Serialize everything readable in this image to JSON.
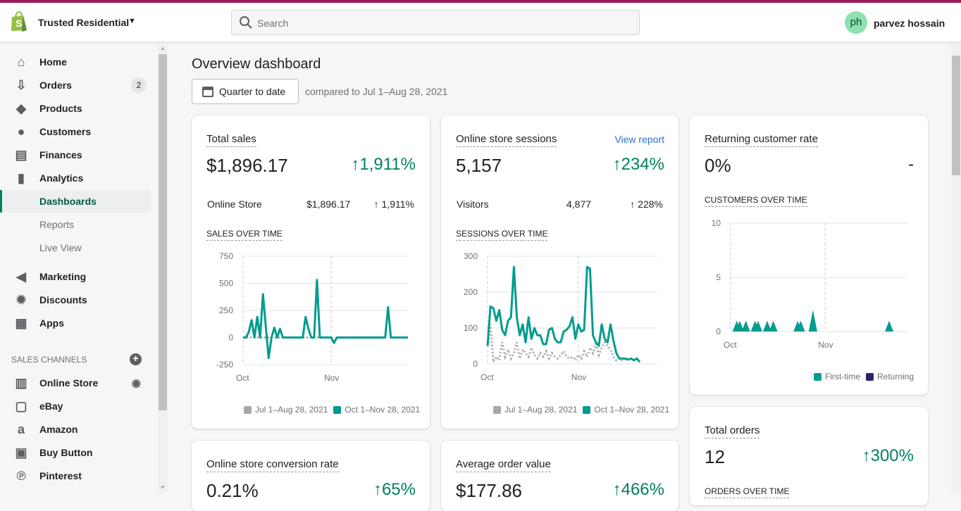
{
  "header": {
    "store_name": "Trusted Residential",
    "search_placeholder": "Search",
    "avatar_initials": "ph",
    "user_name": "parvez hossain"
  },
  "sidebar": {
    "items": [
      {
        "label": "Home",
        "icon": "home-icon"
      },
      {
        "label": "Orders",
        "icon": "orders-icon",
        "badge": "2"
      },
      {
        "label": "Products",
        "icon": "tag-icon"
      },
      {
        "label": "Customers",
        "icon": "person-icon"
      },
      {
        "label": "Finances",
        "icon": "finances-icon"
      },
      {
        "label": "Analytics",
        "icon": "bar-chart-icon"
      }
    ],
    "analytics_sub": [
      "Dashboards",
      "Reports",
      "Live View"
    ],
    "items2": [
      {
        "label": "Marketing",
        "icon": "megaphone-icon"
      },
      {
        "label": "Discounts",
        "icon": "discount-icon"
      },
      {
        "label": "Apps",
        "icon": "apps-icon"
      }
    ],
    "sales_channels_title": "SALES CHANNELS",
    "channels": [
      {
        "label": "Online Store",
        "icon": "store-icon"
      },
      {
        "label": "eBay",
        "icon": "ebay-icon"
      },
      {
        "label": "Amazon",
        "icon": "amazon-icon"
      },
      {
        "label": "Buy Button",
        "icon": "buy-button-icon"
      },
      {
        "label": "Pinterest",
        "icon": "pinterest-icon"
      }
    ]
  },
  "main": {
    "title": "Overview dashboard",
    "date_button": "Quarter to date",
    "compare_text": "compared to Jul 1–Aug 28, 2021"
  },
  "cards": {
    "total_sales": {
      "title": "Total sales",
      "value": "$1,896.17",
      "change": "↑1,911%",
      "row_label": "Online Store",
      "row_value": "$1,896.17",
      "row_change": "↑ 1,911%",
      "chart_title": "SALES OVER TIME"
    },
    "sessions": {
      "title": "Online store sessions",
      "link": "View report",
      "value": "5,157",
      "change": "↑234%",
      "row_label": "Visitors",
      "row_value": "4,877",
      "row_change": "↑ 228%",
      "chart_title": "SESSIONS OVER TIME"
    },
    "returning": {
      "title": "Returning customer rate",
      "value": "0%",
      "change": "-",
      "chart_title": "CUSTOMERS OVER TIME"
    },
    "total_orders": {
      "title": "Total orders",
      "value": "12",
      "change": "↑300%",
      "chart_title": "ORDERS OVER TIME"
    },
    "conversion": {
      "title": "Online store conversion rate",
      "value": "0.21%",
      "change": "↑65%"
    },
    "aov": {
      "title": "Average order value",
      "value": "$177.86",
      "change": "↑466%"
    }
  },
  "colors": {
    "accent": "#009c8f",
    "previous": "#a3a8af",
    "returning": "#2a2470",
    "positive": "#008060"
  },
  "chart_data": [
    {
      "type": "line",
      "title": "SALES OVER TIME",
      "x_ticks": [
        "Oct",
        "Nov"
      ],
      "ylim": [
        -250,
        750
      ],
      "y_ticks": [
        750,
        500,
        250,
        0,
        -250
      ],
      "series": [
        {
          "name": "Jul 1–Aug 28, 2021",
          "values": [
            0,
            0,
            0,
            0,
            0,
            0,
            0,
            0,
            0,
            0,
            0,
            0,
            0,
            0,
            0,
            0,
            0,
            0,
            0,
            0,
            0,
            0,
            0,
            0,
            0,
            0,
            0,
            0,
            0,
            0
          ]
        },
        {
          "name": "Oct 1–Nov 28, 2021",
          "values": [
            0,
            0,
            50,
            160,
            0,
            190,
            0,
            400,
            100,
            -190,
            0,
            90,
            0,
            80,
            0,
            0,
            0,
            0,
            0,
            0,
            0,
            0,
            190,
            80,
            0,
            0,
            530,
            0,
            0,
            0,
            0,
            0,
            -50,
            0,
            0,
            0,
            0,
            0,
            0,
            0,
            0,
            0,
            0,
            0,
            0,
            0,
            0,
            0,
            0,
            0,
            0,
            280,
            0,
            0,
            0,
            0,
            0,
            0,
            0
          ]
        }
      ]
    },
    {
      "type": "line",
      "title": "SESSIONS OVER TIME",
      "x_ticks": [
        "Oct",
        "Nov"
      ],
      "ylim": [
        0,
        300
      ],
      "y_ticks": [
        300,
        200,
        100,
        0
      ],
      "series": [
        {
          "name": "Jul 1–Aug 28, 2021",
          "values": [
            50,
            110,
            5,
            20,
            10,
            60,
            20,
            40,
            15,
            30,
            60,
            15,
            40,
            30,
            20,
            45,
            25,
            15,
            30,
            20,
            35,
            15,
            30,
            20,
            15,
            25,
            35,
            20,
            15,
            20,
            10,
            25,
            15,
            35,
            20,
            45,
            30,
            55,
            25,
            45,
            60,
            50,
            40,
            20,
            10,
            15,
            10,
            12,
            15
          ]
        },
        {
          "name": "Oct 1–Nov 28, 2021",
          "values": [
            50,
            160,
            155,
            120,
            150,
            95,
            80,
            120,
            130,
            270,
            130,
            80,
            110,
            60,
            130,
            70,
            100,
            80,
            80,
            55,
            55,
            95,
            100,
            70,
            60,
            60,
            90,
            95,
            105,
            130,
            70,
            110,
            90,
            95,
            270,
            265,
            80,
            60,
            50,
            110,
            70,
            60,
            110,
            65,
            30,
            15,
            15,
            15,
            12,
            15,
            10,
            15,
            5
          ]
        }
      ]
    },
    {
      "type": "area",
      "title": "CUSTOMERS OVER TIME",
      "x_ticks": [
        "Oct",
        "Nov"
      ],
      "ylim": [
        0,
        10
      ],
      "y_ticks": [
        10,
        5,
        0
      ],
      "series": [
        {
          "name": "First-time",
          "values": [
            0,
            0,
            1,
            1,
            0,
            1,
            0,
            0,
            1,
            1,
            0,
            0,
            1,
            0,
            1,
            0,
            0,
            0,
            0,
            0,
            0,
            0,
            1,
            1,
            0,
            0,
            0,
            2,
            0,
            0,
            0,
            0,
            0,
            0,
            0,
            0,
            0,
            0,
            0,
            0,
            0,
            0,
            0,
            0,
            0,
            0,
            0,
            0,
            0,
            0,
            0,
            0,
            1,
            0,
            0,
            0,
            0,
            0,
            0
          ]
        },
        {
          "name": "Returning",
          "values": [
            0,
            0,
            0,
            0,
            0,
            0,
            0,
            0,
            0,
            0,
            0,
            0,
            0,
            0,
            0,
            0,
            0,
            0,
            0,
            0,
            0,
            0,
            0,
            0,
            0,
            0,
            0,
            0,
            0,
            0,
            0,
            0,
            0,
            0,
            0,
            0,
            0,
            0,
            0,
            0,
            0,
            0,
            0,
            0,
            0,
            0,
            0,
            0,
            0,
            0,
            0,
            0,
            0,
            0,
            0,
            0,
            0,
            0,
            0
          ]
        }
      ]
    }
  ]
}
